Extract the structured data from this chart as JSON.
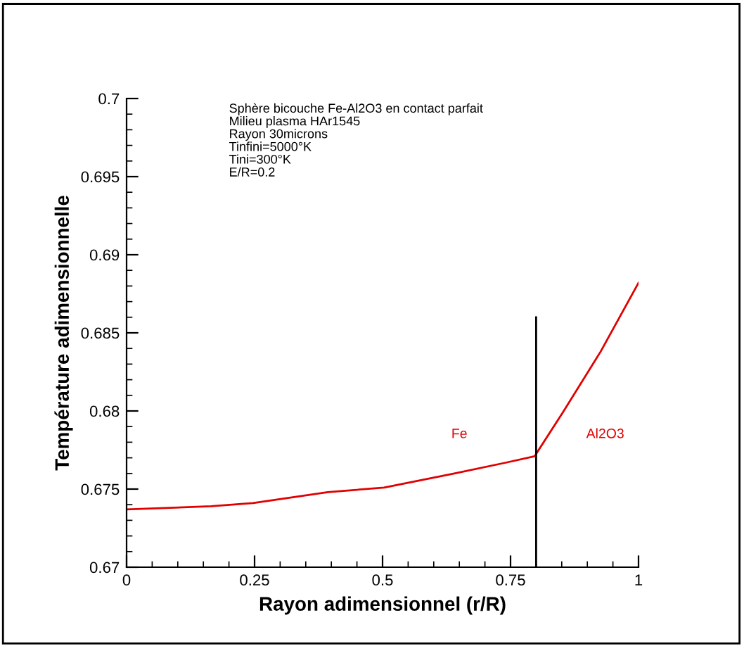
{
  "chart_data": {
    "type": "line",
    "xlabel": "Rayon adimensionnel (r/R)",
    "ylabel": "Température adimensionnelle",
    "annotations": [
      "Sphère bicouche Fe-Al2O3 en contact parfait\nMilieu plasma HAr1545\nRayon 30microns\nTinfini=5000°K\nTini=300°K\nE/R=0.2",
      "Fe",
      "Al2O3"
    ],
    "series": [
      {
        "color": "#e00000",
        "x": [
          0,
          0.165,
          0.247,
          0.393,
          0.503,
          0.64,
          0.742,
          0.797,
          0.852,
          0.926,
          1
        ],
        "values": [
          0.6737,
          0.6739,
          0.6741,
          0.6748,
          0.6751,
          0.676,
          0.6767,
          0.6771,
          0.6799,
          0.6838,
          0.6882
        ]
      },
      {
        "color": "#000000",
        "x": [
          0.8,
          0.8
        ],
        "values": [
          0.67,
          0.686
        ]
      }
    ],
    "xlim": [
      0,
      1
    ],
    "ylim": [
      0.67,
      0.7
    ],
    "xticks": [
      0,
      0.25,
      0.5,
      0.75,
      1
    ],
    "yticks": [
      0.67,
      0.675,
      0.68,
      0.685,
      0.69,
      0.695,
      0.7
    ],
    "grid": false,
    "legend": false
  }
}
